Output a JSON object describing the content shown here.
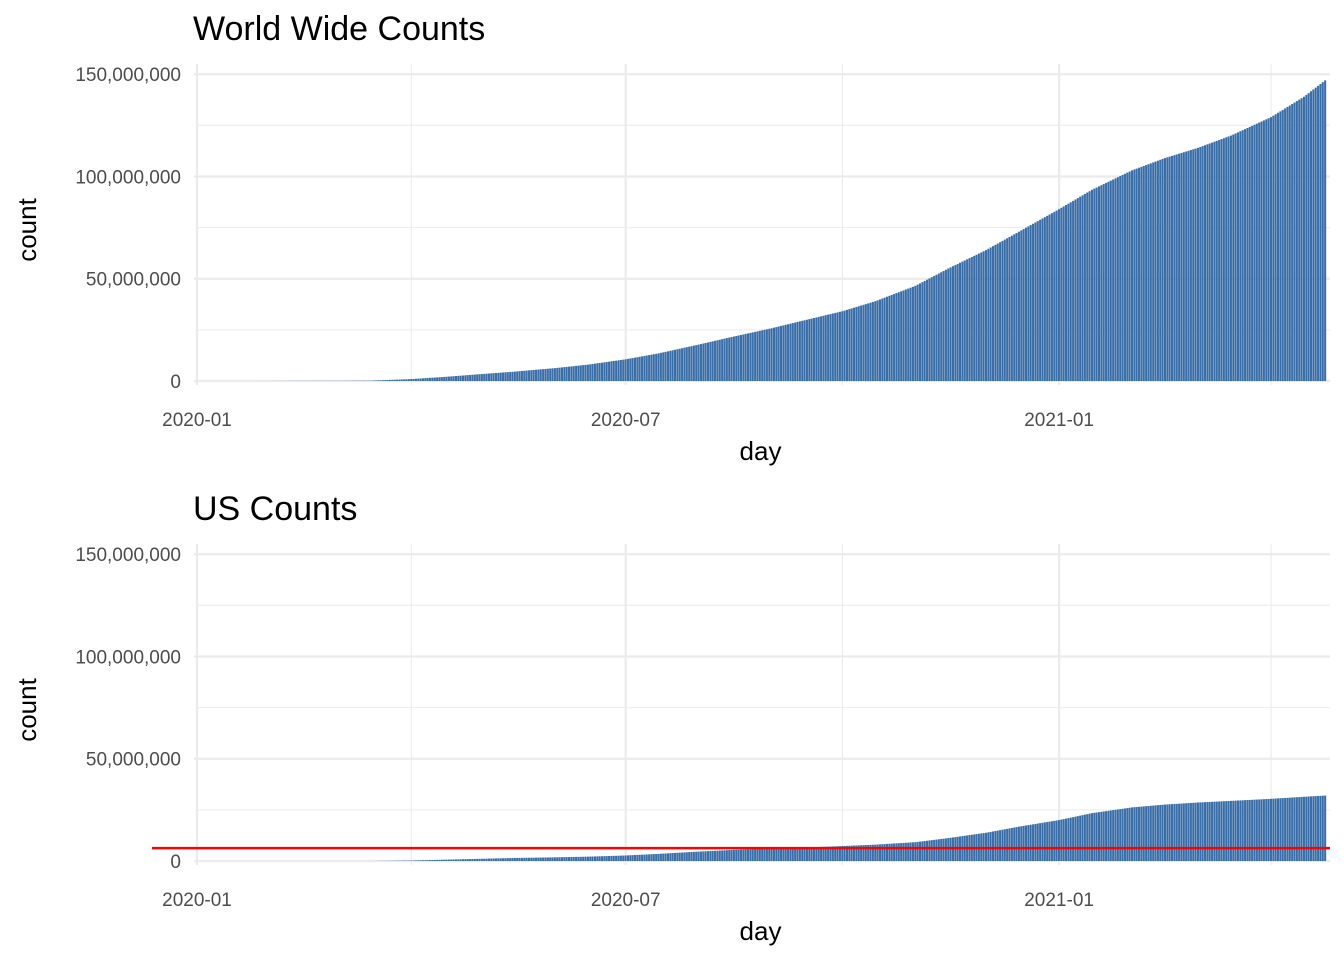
{
  "chart_data": [
    {
      "type": "bar",
      "title": "World Wide Counts",
      "xlabel": "day",
      "ylabel": "count",
      "x_tick_labels": [
        "2020-01",
        "2020-07",
        "2021-01"
      ],
      "y_tick_labels": [
        "0",
        "50,000,000",
        "100,000,000",
        "150,000,000"
      ],
      "y_ticks": [
        0,
        50000000,
        100000000,
        150000000
      ],
      "ylim": [
        0,
        155000000
      ],
      "xlim": [
        "2020-01-01",
        "2021-04-26"
      ],
      "bar_color": "#3a6ea8",
      "grid": true,
      "x": [
        "2020-01-22",
        "2020-02-01",
        "2020-02-15",
        "2020-03-01",
        "2020-03-15",
        "2020-04-01",
        "2020-04-15",
        "2020-05-01",
        "2020-05-15",
        "2020-06-01",
        "2020-06-15",
        "2020-07-01",
        "2020-07-15",
        "2020-08-01",
        "2020-08-15",
        "2020-09-01",
        "2020-09-15",
        "2020-10-01",
        "2020-10-15",
        "2020-11-01",
        "2020-11-15",
        "2020-12-01",
        "2020-12-15",
        "2021-01-01",
        "2021-01-15",
        "2021-02-01",
        "2021-02-15",
        "2021-03-01",
        "2021-03-15",
        "2021-04-01",
        "2021-04-15",
        "2021-04-24"
      ],
      "values": [
        600,
        12000,
        70000,
        88000,
        170000,
        950000,
        2000000,
        3400000,
        4600000,
        6300000,
        8000000,
        10600000,
        13500000,
        17800000,
        21500000,
        25800000,
        29700000,
        34100000,
        39000000,
        46500000,
        55000000,
        64000000,
        73000000,
        84000000,
        93500000,
        103000000,
        109000000,
        114000000,
        120000000,
        129000000,
        139000000,
        147000000
      ]
    },
    {
      "type": "bar",
      "title": "US Counts",
      "xlabel": "day",
      "ylabel": "count",
      "x_tick_labels": [
        "2020-01",
        "2020-07",
        "2021-01"
      ],
      "y_tick_labels": [
        "0",
        "50,000,000",
        "100,000,000",
        "150,000,000"
      ],
      "y_ticks": [
        0,
        50000000,
        100000000,
        150000000
      ],
      "ylim": [
        0,
        155000000
      ],
      "xlim": [
        "2020-01-01",
        "2021-04-26"
      ],
      "bar_color": "#3a6ea8",
      "grid": true,
      "reference_line": {
        "y": 6300000,
        "color": "#ff0000"
      },
      "x": [
        "2020-01-22",
        "2020-02-01",
        "2020-02-15",
        "2020-03-01",
        "2020-03-15",
        "2020-04-01",
        "2020-04-15",
        "2020-05-01",
        "2020-05-15",
        "2020-06-01",
        "2020-06-15",
        "2020-07-01",
        "2020-07-15",
        "2020-08-01",
        "2020-08-15",
        "2020-09-01",
        "2020-09-15",
        "2020-10-01",
        "2020-10-15",
        "2020-11-01",
        "2020-11-15",
        "2020-12-01",
        "2020-12-15",
        "2021-01-01",
        "2021-01-15",
        "2021-02-01",
        "2021-02-15",
        "2021-03-01",
        "2021-03-15",
        "2021-04-01",
        "2021-04-15",
        "2021-04-24"
      ],
      "values": [
        1,
        8,
        15,
        30,
        3500,
        215000,
        640000,
        1100000,
        1480000,
        1800000,
        2120000,
        2700000,
        3500000,
        4600000,
        5400000,
        6100000,
        6600000,
        7300000,
        8000000,
        9200000,
        11200000,
        13800000,
        16800000,
        20000000,
        23400000,
        26200000,
        27600000,
        28600000,
        29400000,
        30400000,
        31400000,
        32000000
      ]
    }
  ]
}
